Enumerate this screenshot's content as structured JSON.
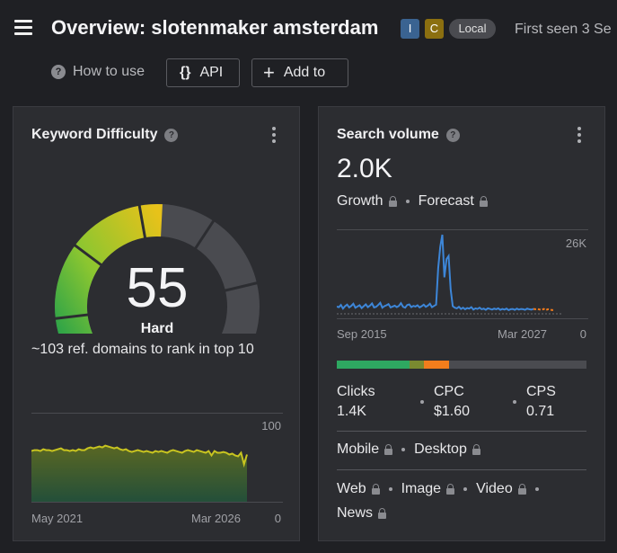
{
  "header": {
    "title": "Overview: slotenmaker amsterdam",
    "badges": {
      "i": "I",
      "c": "C",
      "local": "Local"
    },
    "first_seen": "First seen 3 Se"
  },
  "toolbar": {
    "how_to_use": "How to use",
    "api_icon": "{}",
    "api_label": "API",
    "add_icon": "+",
    "add_label": "Add to"
  },
  "kd_card": {
    "title": "Keyword Difficulty",
    "value": "55",
    "level": "Hard",
    "ref_domains": "~103 ref. domains to rank in top 10",
    "chart": {
      "max_label": "100",
      "min_label": "0",
      "start_label": "May 2021",
      "end_label": "Mar 2026",
      "y_max": 100,
      "values": [
        57,
        58,
        58,
        57,
        59,
        58,
        58,
        57,
        58,
        59,
        60,
        58,
        58,
        57,
        58,
        57,
        59,
        58,
        58,
        60,
        61,
        60,
        61,
        62,
        61,
        63,
        62,
        61,
        60,
        61,
        59,
        58,
        59,
        57,
        56,
        57,
        58,
        57,
        56,
        57,
        56,
        55,
        57,
        56,
        57,
        56,
        55,
        57,
        58,
        57,
        56,
        55,
        57,
        58,
        57,
        56,
        58,
        57,
        56,
        55,
        57,
        52,
        57,
        55,
        55,
        56,
        55,
        53,
        54,
        52,
        51,
        55,
        42,
        53
      ]
    }
  },
  "sv_card": {
    "title": "Search volume",
    "value": "2.0K",
    "growth": "Growth",
    "forecast": "Forecast",
    "chart": {
      "max_label": "26K",
      "min_label": "0",
      "start_label": "Sep 2015",
      "end_label": "Mar 2027",
      "y_max": 26000,
      "values": [
        2400,
        2200,
        2900,
        1700,
        2500,
        3000,
        2100,
        2600,
        3300,
        2000,
        2400,
        2800,
        1900,
        2500,
        3100,
        2200,
        2700,
        3400,
        2100,
        2300,
        2900,
        3600,
        2000,
        2500,
        2800,
        3200,
        2100,
        2400,
        2700,
        2200,
        2600,
        3500,
        2300,
        2000,
        2900,
        3100,
        2200,
        2600,
        2400,
        2800,
        2100,
        2500,
        3000,
        2300,
        2700,
        3300,
        2200,
        2600,
        3000,
        15000,
        22000,
        26000,
        12000,
        18000,
        19000,
        8000,
        2500,
        2000,
        1800,
        2300,
        1600,
        2000,
        1500,
        1900,
        1700,
        2200,
        1400,
        1800,
        1600,
        2000,
        1500,
        1700,
        1300,
        1800,
        1600,
        1400,
        1700,
        1500,
        1800,
        1300,
        1600,
        1400,
        1700,
        1200,
        1500,
        1600,
        1300,
        1700,
        1400,
        1600,
        1500,
        1300,
        1700,
        1500,
        1400,
        1600
      ],
      "forecast_values": [
        1500,
        1600,
        1400,
        1300,
        1600,
        1200,
        1500,
        1400,
        1200,
        1300
      ],
      "colors": {
        "line": "#3d86d8",
        "forecast": "#f07a1c"
      }
    },
    "intent_segments": [
      {
        "color": "#2ea861",
        "pct": 29
      },
      {
        "color": "#7a8a30",
        "pct": 6
      },
      {
        "color": "#f27d1c",
        "pct": 10
      }
    ],
    "metrics": {
      "clicks_label": "Clicks",
      "clicks_value": "1.4K",
      "cpc_label": "CPC",
      "cpc_value": "$1.60",
      "cps_label": "CPS",
      "cps_value": "0.71"
    },
    "devices": {
      "mobile": "Mobile",
      "desktop": "Desktop"
    },
    "serp_types": {
      "web": "Web",
      "image": "Image",
      "video": "Video",
      "news": "News"
    }
  }
}
